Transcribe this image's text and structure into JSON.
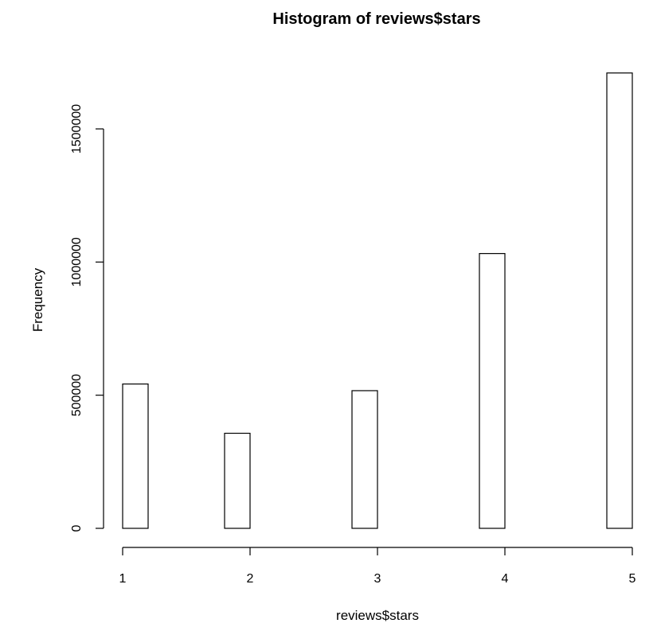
{
  "chart_data": {
    "type": "bar",
    "title": "Histogram of reviews$stars",
    "xlabel": "reviews$stars",
    "ylabel": "Frequency",
    "x_ticks": [
      1,
      2,
      3,
      4,
      5
    ],
    "y_ticks": [
      0,
      500000,
      1000000,
      1500000
    ],
    "xlim": [
      1,
      5
    ],
    "ylim": [
      0,
      1710000
    ],
    "bins": [
      {
        "x0": 1.0,
        "x1": 1.2,
        "value": 542000
      },
      {
        "x0": 1.2,
        "x1": 1.4,
        "value": 0
      },
      {
        "x0": 1.4,
        "x1": 1.6,
        "value": 0
      },
      {
        "x0": 1.6,
        "x1": 1.8,
        "value": 0
      },
      {
        "x0": 1.8,
        "x1": 2.0,
        "value": 357000
      },
      {
        "x0": 2.0,
        "x1": 2.2,
        "value": 0
      },
      {
        "x0": 2.2,
        "x1": 2.4,
        "value": 0
      },
      {
        "x0": 2.4,
        "x1": 2.6,
        "value": 0
      },
      {
        "x0": 2.6,
        "x1": 2.8,
        "value": 0
      },
      {
        "x0": 2.8,
        "x1": 3.0,
        "value": 517000
      },
      {
        "x0": 3.0,
        "x1": 3.2,
        "value": 0
      },
      {
        "x0": 3.2,
        "x1": 3.4,
        "value": 0
      },
      {
        "x0": 3.4,
        "x1": 3.6,
        "value": 0
      },
      {
        "x0": 3.6,
        "x1": 3.8,
        "value": 0
      },
      {
        "x0": 3.8,
        "x1": 4.0,
        "value": 1032000
      },
      {
        "x0": 4.0,
        "x1": 4.2,
        "value": 0
      },
      {
        "x0": 4.2,
        "x1": 4.4,
        "value": 0
      },
      {
        "x0": 4.4,
        "x1": 4.6,
        "value": 0
      },
      {
        "x0": 4.6,
        "x1": 4.8,
        "value": 0
      },
      {
        "x0": 4.8,
        "x1": 5.0,
        "value": 1710000
      }
    ]
  }
}
